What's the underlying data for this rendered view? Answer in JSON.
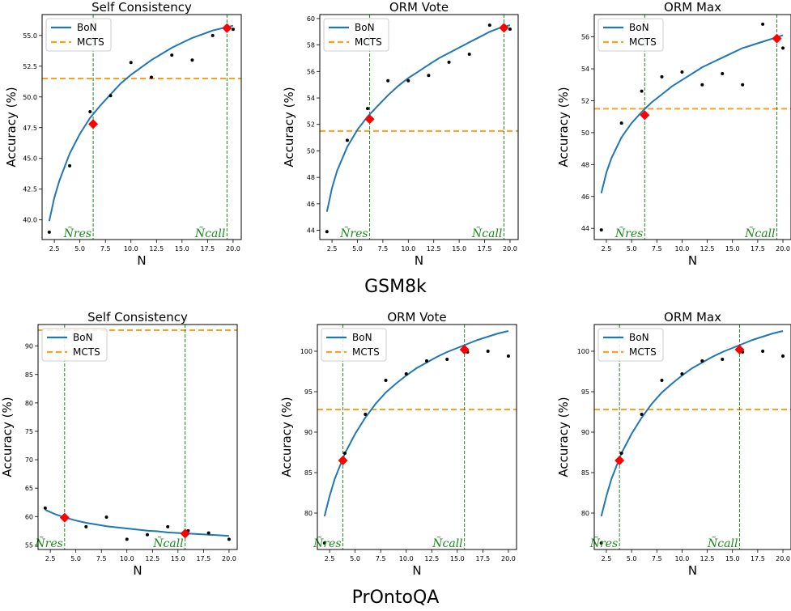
{
  "groups": [
    {
      "label": "GSM8k"
    },
    {
      "label": "PrOntoQA"
    }
  ],
  "chart_data": [
    {
      "type": "line",
      "title": "Self Consistency",
      "xlabel": "N",
      "ylabel": "Accuracy (%)",
      "xlim": [
        1.3,
        20.8
      ],
      "ylim": [
        38.4,
        56.7
      ],
      "xticks": [
        2.5,
        5.0,
        7.5,
        10.0,
        12.5,
        15.0,
        17.5,
        20.0
      ],
      "yticks": [
        40.0,
        42.5,
        45.0,
        47.5,
        50.0,
        52.5,
        55.0
      ],
      "series": [
        {
          "name": "BoN",
          "color": "#1f77b4",
          "x": [
            2,
            2.5,
            3,
            4,
            5,
            6,
            7,
            8,
            9,
            10,
            11,
            12,
            13,
            14,
            15,
            16,
            17,
            18,
            19,
            20
          ],
          "y": [
            39.9,
            41.8,
            43.2,
            45.4,
            47.0,
            48.3,
            49.3,
            50.2,
            51.1,
            51.8,
            52.4,
            53.0,
            53.5,
            54.0,
            54.4,
            54.8,
            55.1,
            55.4,
            55.6,
            55.8
          ]
        },
        {
          "name": "MCTS",
          "color": "#ff9f1a",
          "y": 51.5
        }
      ],
      "points": [
        [
          2,
          39.0
        ],
        [
          4,
          44.4
        ],
        [
          6,
          48.8
        ],
        [
          8,
          50.1
        ],
        [
          10,
          52.8
        ],
        [
          12,
          51.6
        ],
        [
          14,
          53.4
        ],
        [
          16,
          53.0
        ],
        [
          18,
          55.0
        ],
        [
          20,
          55.5
        ]
      ],
      "markers": [
        [
          6.3,
          47.8
        ],
        [
          19.4,
          55.6
        ]
      ],
      "vlines": [
        6.3,
        19.4
      ],
      "vlabels": [
        "Ñres",
        "Ñcall"
      ]
    },
    {
      "type": "line",
      "title": "ORM Vote",
      "xlabel": "N",
      "ylabel": "Accuracy (%)",
      "xlim": [
        1.3,
        20.8
      ],
      "ylim": [
        43.3,
        60.3
      ],
      "xticks": [
        2.5,
        5.0,
        7.5,
        10.0,
        12.5,
        15.0,
        17.5,
        20.0
      ],
      "yticks": [
        44,
        46,
        48,
        50,
        52,
        54,
        56,
        58,
        60
      ],
      "series": [
        {
          "name": "BoN",
          "color": "#1f77b4",
          "x": [
            2,
            2.5,
            3,
            4,
            5,
            6,
            7,
            8,
            9,
            10,
            11,
            12,
            13,
            14,
            15,
            16,
            17,
            18,
            19,
            20
          ],
          "y": [
            45.4,
            47.2,
            48.5,
            50.3,
            51.6,
            52.6,
            53.4,
            54.2,
            54.9,
            55.5,
            56.0,
            56.5,
            57.0,
            57.4,
            57.8,
            58.2,
            58.6,
            59.0,
            59.3,
            59.5
          ]
        },
        {
          "name": "MCTS",
          "color": "#ff9f1a",
          "y": 51.5
        }
      ],
      "points": [
        [
          2,
          43.9
        ],
        [
          4,
          50.8
        ],
        [
          6,
          53.2
        ],
        [
          8,
          55.3
        ],
        [
          10,
          55.3
        ],
        [
          12,
          55.7
        ],
        [
          14,
          56.7
        ],
        [
          16,
          57.3
        ],
        [
          18,
          59.5
        ],
        [
          20,
          59.2
        ]
      ],
      "markers": [
        [
          6.2,
          52.4
        ],
        [
          19.4,
          59.3
        ]
      ],
      "vlines": [
        6.2,
        19.4
      ],
      "vlabels": [
        "Ñres",
        "Ñcall"
      ]
    },
    {
      "type": "line",
      "title": "ORM Max",
      "xlabel": "N",
      "ylabel": "Accuracy (%)",
      "xlim": [
        1.3,
        20.8
      ],
      "ylim": [
        43.3,
        57.4
      ],
      "xticks": [
        2.5,
        5.0,
        7.5,
        10.0,
        12.5,
        15.0,
        17.5,
        20.0
      ],
      "yticks": [
        44,
        46,
        48,
        50,
        52,
        54,
        56
      ],
      "series": [
        {
          "name": "BoN",
          "color": "#1f77b4",
          "x": [
            2,
            2.5,
            3,
            4,
            5,
            6,
            7,
            8,
            9,
            10,
            11,
            12,
            13,
            14,
            15,
            16,
            17,
            18,
            19,
            20
          ],
          "y": [
            46.2,
            47.5,
            48.4,
            49.7,
            50.6,
            51.3,
            51.9,
            52.4,
            52.9,
            53.3,
            53.7,
            54.1,
            54.4,
            54.7,
            55.0,
            55.3,
            55.5,
            55.7,
            55.9,
            56.1
          ]
        },
        {
          "name": "MCTS",
          "color": "#ff9f1a",
          "y": 51.5
        }
      ],
      "points": [
        [
          2,
          43.9
        ],
        [
          4,
          50.6
        ],
        [
          6,
          52.6
        ],
        [
          8,
          53.5
        ],
        [
          10,
          53.8
        ],
        [
          12,
          53.0
        ],
        [
          14,
          53.7
        ],
        [
          16,
          53.0
        ],
        [
          18,
          56.8
        ],
        [
          20,
          55.3
        ]
      ],
      "markers": [
        [
          6.3,
          51.1
        ],
        [
          19.4,
          55.9
        ]
      ],
      "vlines": [
        6.3,
        19.4
      ],
      "vlabels": [
        "Ñres",
        "Ñcall"
      ]
    },
    {
      "type": "line",
      "title": "Self Consistency",
      "xlabel": "N",
      "ylabel": "Accuracy (%)",
      "xlim": [
        1.3,
        20.8
      ],
      "ylim": [
        54.2,
        93.8
      ],
      "xticks": [
        2.5,
        5.0,
        7.5,
        10.0,
        12.5,
        15.0,
        17.5,
        20.0
      ],
      "yticks": [
        55,
        60,
        65,
        70,
        75,
        80,
        85,
        90
      ],
      "series": [
        {
          "name": "BoN",
          "color": "#1f77b4",
          "x": [
            2,
            3,
            4,
            5,
            6,
            7,
            8,
            9,
            10,
            11,
            12,
            13,
            14,
            15,
            16,
            17,
            18,
            19,
            20
          ],
          "y": [
            61.2,
            60.4,
            59.8,
            59.3,
            58.9,
            58.6,
            58.3,
            58.1,
            57.9,
            57.7,
            57.5,
            57.4,
            57.2,
            57.1,
            57.0,
            56.9,
            56.8,
            56.7,
            56.6
          ]
        },
        {
          "name": "MCTS",
          "color": "#ff9f1a",
          "y": 92.8
        }
      ],
      "points": [
        [
          2,
          61.5
        ],
        [
          4,
          59.7
        ],
        [
          6,
          58.2
        ],
        [
          8,
          59.9
        ],
        [
          10,
          56.0
        ],
        [
          12,
          56.8
        ],
        [
          14,
          58.2
        ],
        [
          16,
          57.5
        ],
        [
          18,
          57.1
        ],
        [
          20,
          56.0
        ]
      ],
      "markers": [
        [
          3.9,
          59.8
        ],
        [
          15.7,
          57.0
        ]
      ],
      "vlines": [
        3.9,
        15.7
      ],
      "vlabels": [
        "Ñres",
        "Ñcall"
      ]
    },
    {
      "type": "line",
      "title": "ORM Vote",
      "xlabel": "N",
      "ylabel": "Accuracy (%)",
      "xlim": [
        1.3,
        20.8
      ],
      "ylim": [
        75.5,
        103.3
      ],
      "xticks": [
        2.5,
        5.0,
        7.5,
        10.0,
        12.5,
        15.0,
        17.5,
        20.0
      ],
      "yticks": [
        80,
        85,
        90,
        95,
        100
      ],
      "series": [
        {
          "name": "BoN",
          "color": "#1f77b4",
          "x": [
            2,
            2.5,
            3,
            4,
            5,
            6,
            7,
            8,
            9,
            10,
            11,
            12,
            13,
            14,
            15,
            16,
            17,
            18,
            19,
            20
          ],
          "y": [
            79.6,
            82.1,
            84.2,
            87.4,
            89.8,
            91.8,
            93.5,
            94.9,
            96.0,
            97.0,
            97.9,
            98.6,
            99.3,
            99.9,
            100.4,
            100.9,
            101.4,
            101.8,
            102.2,
            102.5
          ]
        },
        {
          "name": "MCTS",
          "color": "#ff9f1a",
          "y": 92.8
        }
      ],
      "points": [
        [
          2,
          76.3
        ],
        [
          4,
          87.4
        ],
        [
          6,
          92.2
        ],
        [
          8,
          96.4
        ],
        [
          10,
          97.2
        ],
        [
          12,
          98.8
        ],
        [
          14,
          99.0
        ],
        [
          16,
          99.9
        ],
        [
          18,
          100.0
        ],
        [
          20,
          99.4
        ]
      ],
      "markers": [
        [
          3.8,
          86.5
        ],
        [
          15.7,
          100.2
        ]
      ],
      "vlines": [
        3.8,
        15.7
      ],
      "vlabels": [
        "Ñres",
        "Ñcall"
      ]
    },
    {
      "type": "line",
      "title": "ORM Max",
      "xlabel": "N",
      "ylabel": "Accuracy (%)",
      "xlim": [
        1.3,
        20.8
      ],
      "ylim": [
        75.5,
        103.3
      ],
      "xticks": [
        2.5,
        5.0,
        7.5,
        10.0,
        12.5,
        15.0,
        17.5,
        20.0
      ],
      "yticks": [
        80,
        85,
        90,
        95,
        100
      ],
      "series": [
        {
          "name": "BoN",
          "color": "#1f77b4",
          "x": [
            2,
            2.5,
            3,
            4,
            5,
            6,
            7,
            8,
            9,
            10,
            11,
            12,
            13,
            14,
            15,
            16,
            17,
            18,
            19,
            20
          ],
          "y": [
            79.6,
            82.1,
            84.2,
            87.4,
            89.8,
            91.8,
            93.5,
            94.9,
            96.0,
            97.0,
            97.9,
            98.6,
            99.3,
            99.9,
            100.4,
            100.9,
            101.4,
            101.8,
            102.2,
            102.5
          ]
        },
        {
          "name": "MCTS",
          "color": "#ff9f1a",
          "y": 92.8
        }
      ],
      "points": [
        [
          2,
          76.3
        ],
        [
          4,
          87.4
        ],
        [
          6,
          92.2
        ],
        [
          8,
          96.4
        ],
        [
          10,
          97.2
        ],
        [
          12,
          98.8
        ],
        [
          14,
          99.0
        ],
        [
          16,
          99.9
        ],
        [
          18,
          100.0
        ],
        [
          20,
          99.4
        ]
      ],
      "markers": [
        [
          3.8,
          86.5
        ],
        [
          15.7,
          100.2
        ]
      ],
      "vlines": [
        3.8,
        15.7
      ],
      "vlabels": [
        "Ñres",
        "Ñcall"
      ]
    }
  ]
}
